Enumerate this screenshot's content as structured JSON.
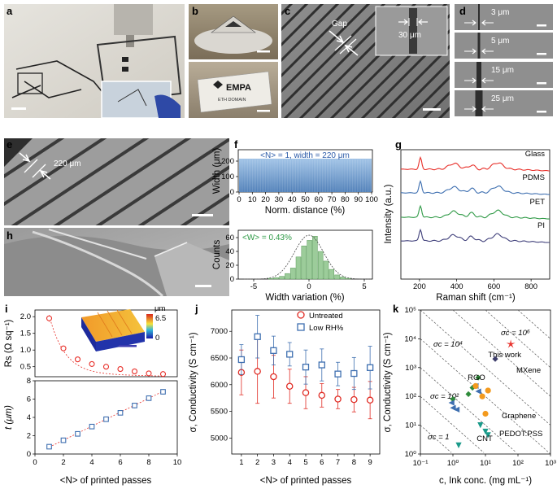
{
  "panel_letters": [
    "a",
    "b",
    "c",
    "d",
    "e",
    "f",
    "g",
    "h",
    "i",
    "j",
    "k"
  ],
  "panel_b": {
    "logo_text": "EMPA",
    "logo_subtext": "ETH DOMAIN"
  },
  "panel_c": {
    "gap_label": "Gap",
    "inset_label": "30 μm"
  },
  "panel_d": {
    "labels": [
      "3 μm",
      "5 μm",
      "15 μm",
      "25 μm"
    ]
  },
  "panel_e": {
    "label": "220 μm"
  },
  "panel_f_top": {
    "annotation": "<N> = 1, width = 220 μm",
    "ylabel": "Width (μm)",
    "xlabel": "Norm. distance (%)",
    "xticks": [
      "0",
      "10",
      "20",
      "30",
      "40",
      "50",
      "60",
      "70",
      "80",
      "90",
      "100"
    ],
    "yticks": [
      "0",
      "100",
      "200"
    ]
  },
  "panel_f_bottom": {
    "annotation": "<W> = 0.43%",
    "ylabel": "Counts",
    "xlabel": "Width variation (%)",
    "xticks": [
      "-5",
      "0",
      "5"
    ],
    "yticks": [
      "0",
      "20",
      "40",
      "60"
    ]
  },
  "panel_g": {
    "ylabel": "Intensity (a.u.)",
    "xlabel": "Raman shift (cm⁻¹)",
    "xticks": [
      "200",
      "400",
      "600",
      "800"
    ],
    "series": [
      {
        "name": "Glass",
        "color": "#e8302a"
      },
      {
        "name": "PDMS",
        "color": "#3e6fb0"
      },
      {
        "name": "PET",
        "color": "#2f9a46"
      },
      {
        "name": "PI",
        "color": "#3f3f7a"
      }
    ]
  },
  "panel_i": {
    "ylabel_top": "Rs (Ω sq⁻¹)",
    "ylabel_bottom": "t (μm)",
    "xlabel": "<N> of printed passes",
    "xticks": [
      "0",
      "2",
      "4",
      "6",
      "8",
      "10"
    ],
    "yticks_top": [
      "0.5",
      "1.0",
      "1.5",
      "2.0"
    ],
    "yticks_bottom": [
      "0",
      "2",
      "4",
      "6",
      "8"
    ],
    "colorbar_unit": "μm",
    "colorbar_ticks": [
      "6.5",
      "0"
    ]
  },
  "panel_j": {
    "ylabel": "σ, Conductivity (S cm⁻¹)",
    "xlabel": "<N> of printed passes",
    "yticks": [
      "5000",
      "5500",
      "6000",
      "6500",
      "7000"
    ],
    "xticks": [
      "1",
      "2",
      "3",
      "4",
      "5",
      "6",
      "7",
      "8",
      "9"
    ],
    "legend": [
      "Untreated",
      "Low RH%"
    ]
  },
  "panel_k": {
    "ylabel": "σ, Conductivity (S cm⁻¹)",
    "xlabel": "c, Ink conc. (mg mL⁻¹)",
    "xticks": [
      "10⁻¹",
      "10⁰",
      "10¹",
      "10²",
      "10³"
    ],
    "yticks": [
      "10⁰",
      "10¹",
      "10²",
      "10³",
      "10⁴",
      "10⁵"
    ],
    "iso_labels": [
      "σc = 10⁶",
      "σc = 10⁴",
      "σc = 10²",
      "σc = 1"
    ],
    "materials": [
      {
        "name": "This work",
        "color": "#e8302a"
      },
      {
        "name": "MXene",
        "color": "#3d3d6b"
      },
      {
        "name": "RGO",
        "color": "#2e8b3a"
      },
      {
        "name": "Graphene",
        "color": "#3e6fb0"
      },
      {
        "name": "PEDOT:PSS",
        "color": "#f39a1e"
      },
      {
        "name": "CNT",
        "color": "#1a9a8a"
      }
    ]
  },
  "chart_data": [
    {
      "type": "line",
      "panel": "i-top",
      "xlabel": "<N> of printed passes",
      "ylabel": "Rs (Ω sq⁻¹)",
      "x": [
        1,
        2,
        3,
        4,
        5,
        6,
        7,
        8,
        9
      ],
      "series": [
        {
          "values": [
            1.95,
            1.05,
            0.72,
            0.58,
            0.5,
            0.43,
            0.36,
            0.3,
            0.28
          ],
          "errors": [
            0.1,
            0.06,
            0.04,
            0.03,
            0.03,
            0.02,
            0.02,
            0.02,
            0.02
          ]
        }
      ],
      "ylim": [
        0.2,
        2.2
      ],
      "xlim": [
        0,
        10
      ]
    },
    {
      "type": "line",
      "panel": "i-bottom",
      "xlabel": "<N> of printed passes",
      "ylabel": "t (μm)",
      "x": [
        1,
        2,
        3,
        4,
        5,
        6,
        7,
        8,
        9
      ],
      "series": [
        {
          "values": [
            0.8,
            1.5,
            2.2,
            3.0,
            3.8,
            4.5,
            5.3,
            6.1,
            6.8
          ],
          "errors": [
            0.2,
            0.2,
            0.2,
            0.25,
            0.25,
            0.25,
            0.3,
            0.3,
            0.3
          ]
        }
      ],
      "ylim": [
        0,
        8
      ],
      "xlim": [
        0,
        10
      ]
    },
    {
      "type": "scatter",
      "panel": "j",
      "xlabel": "<N> of printed passes",
      "ylabel": "σ, Conductivity (S cm⁻¹)",
      "categories": [
        1,
        2,
        3,
        4,
        5,
        6,
        7,
        8,
        9
      ],
      "series": [
        {
          "name": "Untreated",
          "values": [
            6230,
            6250,
            6150,
            5970,
            5850,
            5800,
            5730,
            5720,
            5710
          ],
          "errors": [
            420,
            600,
            400,
            320,
            300,
            220,
            180,
            230,
            350
          ]
        },
        {
          "name": "Low RH%",
          "values": [
            6470,
            6900,
            6640,
            6570,
            6330,
            6370,
            6200,
            6210,
            6320
          ],
          "errors": [
            280,
            400,
            270,
            220,
            320,
            300,
            220,
            300,
            400
          ]
        }
      ],
      "ylim": [
        4700,
        7400
      ]
    },
    {
      "type": "scatter",
      "panel": "k",
      "xlabel": "c, Ink conc. (mg mL⁻¹)",
      "ylabel": "σ, Conductivity (S cm⁻¹)",
      "xscale": "log",
      "yscale": "log",
      "xlim": [
        0.1,
        1000
      ],
      "ylim": [
        1,
        100000
      ],
      "series": [
        {
          "name": "This work",
          "marker": "star",
          "points": [
            [
              60,
              6500
            ]
          ]
        },
        {
          "name": "MXene",
          "marker": "diamond",
          "points": [
            [
              20,
              2000
            ]
          ]
        },
        {
          "name": "RGO",
          "marker": "diamond",
          "points": [
            [
              4,
              200
            ],
            [
              6,
              450
            ],
            [
              1,
              80
            ],
            [
              3,
              120
            ]
          ]
        },
        {
          "name": "Graphene",
          "marker": "triangle-left",
          "points": [
            [
              6,
              150
            ],
            [
              1,
              40
            ],
            [
              1.3,
              35
            ],
            [
              5,
              230
            ],
            [
              0.9,
              60
            ]
          ]
        },
        {
          "name": "PEDOT:PSS",
          "marker": "circle",
          "points": [
            [
              5,
              230
            ],
            [
              8,
              100
            ],
            [
              12,
              160
            ],
            [
              10,
              25
            ]
          ]
        },
        {
          "name": "CNT",
          "marker": "triangle-down",
          "points": [
            [
              7,
              10
            ],
            [
              10,
              6
            ],
            [
              12,
              4.5
            ],
            [
              1.5,
              2
            ]
          ]
        }
      ]
    }
  ]
}
